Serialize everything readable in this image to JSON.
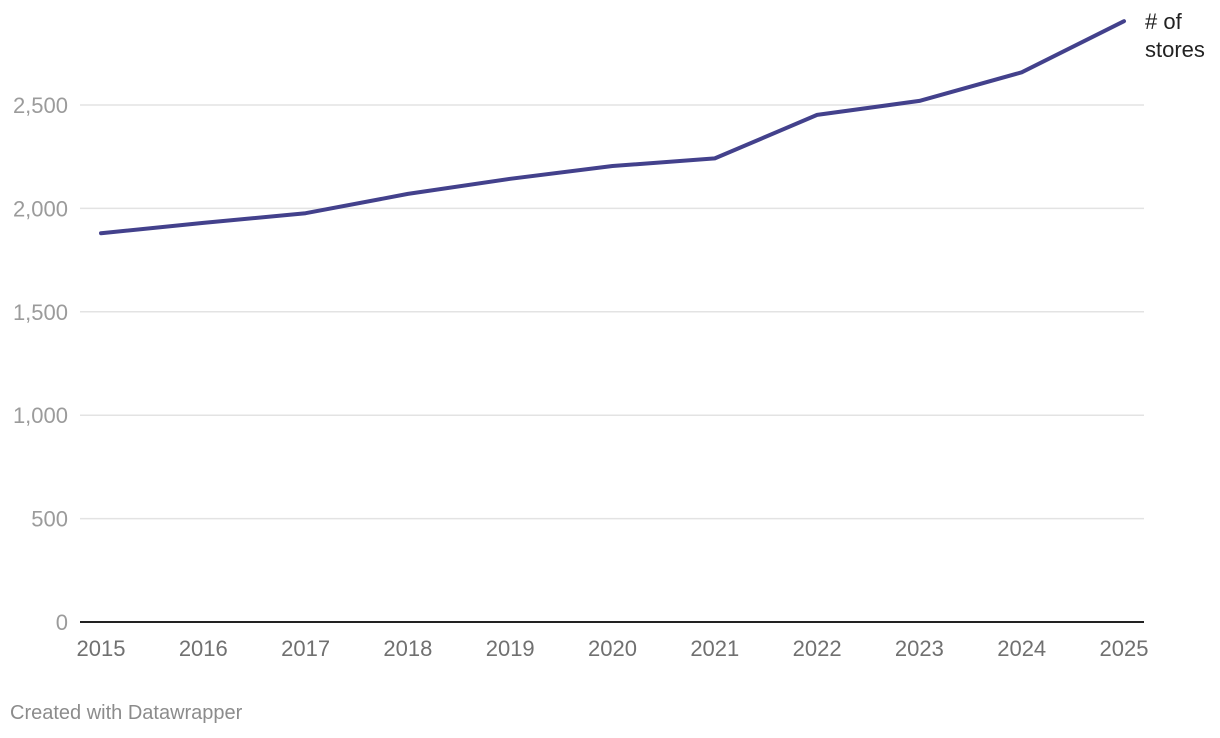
{
  "chart_data": {
    "type": "line",
    "title": "",
    "xlabel": "",
    "ylabel": "",
    "x": [
      "2015",
      "2016",
      "2017",
      "2018",
      "2019",
      "2020",
      "2021",
      "2022",
      "2023",
      "2024",
      "2025"
    ],
    "series": [
      {
        "name": "# of stores",
        "label_lines": [
          "# of",
          "stores"
        ],
        "values": [
          1880,
          1930,
          1977,
          2070,
          2143,
          2205,
          2242,
          2452,
          2520,
          2658,
          2905
        ]
      }
    ],
    "ylim": [
      0,
      2900
    ],
    "yticks": [
      0,
      500,
      1000,
      1500,
      2000,
      2500
    ],
    "ytick_labels": [
      "0",
      "500",
      "1,000",
      "1,500",
      "2,000",
      "2,500"
    ],
    "grid": true,
    "legend": "inline-end-label"
  },
  "colors": {
    "line": "#43418c",
    "grid": "#e3e3e3",
    "baseline": "#222222"
  },
  "footer": {
    "credit": "Created with Datawrapper"
  }
}
